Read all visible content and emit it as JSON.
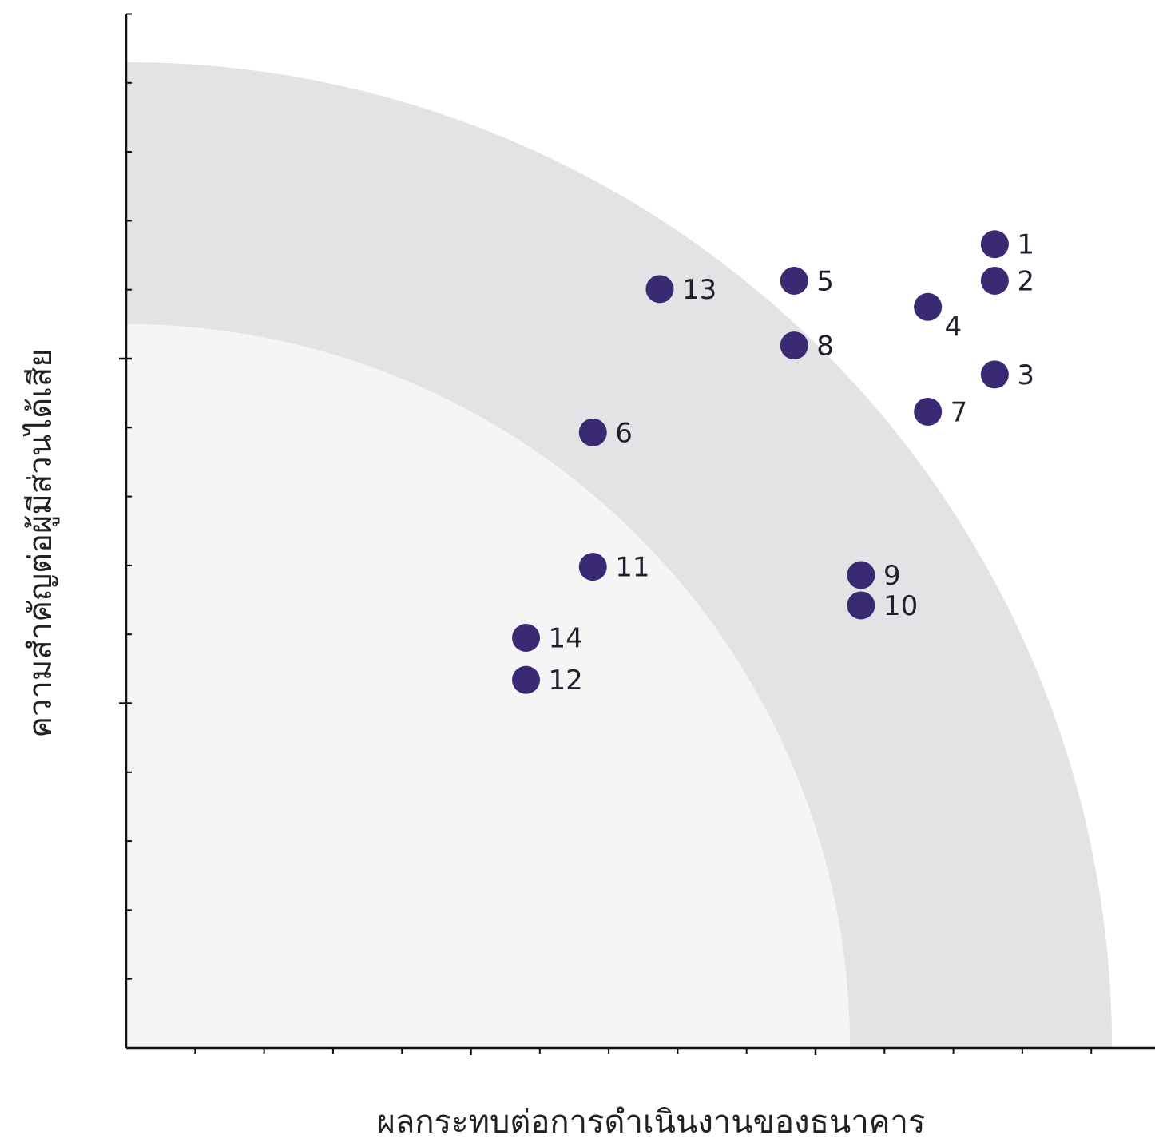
{
  "chart_data": {
    "type": "scatter",
    "title": "",
    "xlabel": "ผลกระทบต่อการดำเนินงานของธนาคาร",
    "ylabel": "ความสำคัญต่อผู้มีส่วนได้เสีย",
    "xlim": [
      0,
      15
    ],
    "ylim": [
      0,
      15
    ],
    "x_major_ticks": [
      5,
      10
    ],
    "y_major_ticks": [
      5,
      10
    ],
    "tick_step": 1,
    "grid": false,
    "zones": [
      {
        "name": "outer-band",
        "radius_from": 10.5,
        "radius_to": 14.3,
        "color": "#e2e3e5"
      },
      {
        "name": "inner-zone",
        "radius_from": 0,
        "radius_to": 10.5,
        "color": "#f5f5f6"
      }
    ],
    "point_color": "#3a2a73",
    "points": [
      {
        "label": "1",
        "x": 12.6,
        "y": 11.66
      },
      {
        "label": "2",
        "x": 12.6,
        "y": 11.13
      },
      {
        "label": "3",
        "x": 12.6,
        "y": 9.77
      },
      {
        "label": "4",
        "x": 11.63,
        "y": 10.75
      },
      {
        "label": "5",
        "x": 9.69,
        "y": 11.13
      },
      {
        "label": "6",
        "x": 6.77,
        "y": 8.93
      },
      {
        "label": "7",
        "x": 11.63,
        "y": 9.23
      },
      {
        "label": "8",
        "x": 9.69,
        "y": 10.19
      },
      {
        "label": "9",
        "x": 10.66,
        "y": 6.86
      },
      {
        "label": "10",
        "x": 10.66,
        "y": 6.42
      },
      {
        "label": "11",
        "x": 6.77,
        "y": 6.98
      },
      {
        "label": "12",
        "x": 5.8,
        "y": 5.34
      },
      {
        "label": "13",
        "x": 7.74,
        "y": 11.01
      },
      {
        "label": "14",
        "x": 5.8,
        "y": 5.95
      }
    ]
  }
}
